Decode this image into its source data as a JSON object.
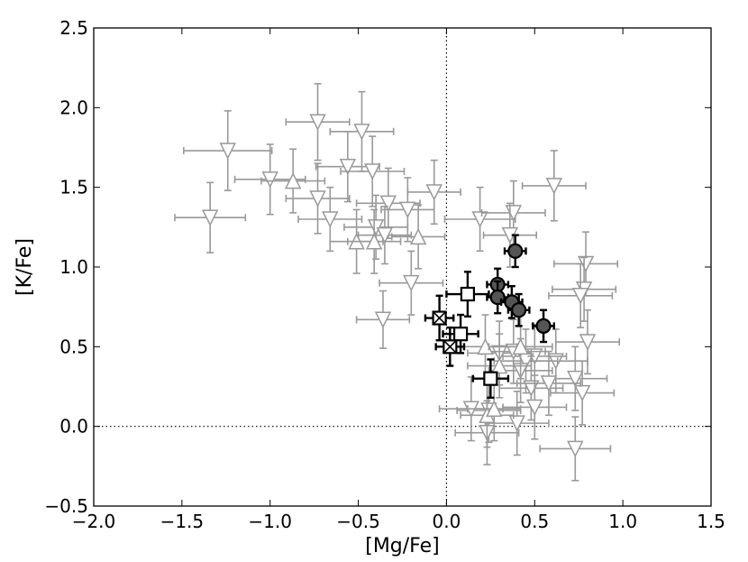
{
  "chart_data": {
    "type": "scatter",
    "title": "",
    "xlabel": "[Mg/Fe]",
    "ylabel": "[K/Fe]",
    "xlim": [
      -2.0,
      1.5
    ],
    "ylim": [
      -0.5,
      2.5
    ],
    "xticks": [
      -2.0,
      -1.5,
      -1.0,
      -0.5,
      0.0,
      0.5,
      1.0,
      1.5
    ],
    "yticks": [
      -0.5,
      0.0,
      0.5,
      1.0,
      1.5,
      2.0,
      2.5
    ],
    "xtick_labels": [
      "−2.0",
      "−1.5",
      "−1.0",
      "−0.5",
      "0.0",
      "0.5",
      "1.0",
      "1.5"
    ],
    "ytick_labels": [
      "−0.5",
      "0.0",
      "0.5",
      "1.0",
      "1.5",
      "2.0",
      "2.5"
    ],
    "reference_lines": {
      "x": 0.0,
      "y": 0.0,
      "style": "dotted"
    },
    "grid": false,
    "colors": {
      "gray_markers": "#999999",
      "black_markers": "#000000",
      "filled_circle": "#555555"
    },
    "series": [
      {
        "marker": "triangle-down",
        "fill": "#ffffff",
        "edge": "#999999",
        "points": [
          {
            "x": -1.34,
            "y": 1.31,
            "xerr": 0.2,
            "yerr": 0.22
          },
          {
            "x": -1.24,
            "y": 1.73,
            "xerr": 0.25,
            "yerr": 0.25
          },
          {
            "x": -1.0,
            "y": 1.55,
            "xerr": 0.2,
            "yerr": 0.22
          },
          {
            "x": -0.73,
            "y": 1.91,
            "xerr": 0.18,
            "yerr": 0.24
          },
          {
            "x": -0.73,
            "y": 1.43,
            "xerr": 0.18,
            "yerr": 0.22
          },
          {
            "x": -0.66,
            "y": 1.3,
            "xerr": 0.18,
            "yerr": 0.2
          },
          {
            "x": -0.56,
            "y": 1.63,
            "xerr": 0.18,
            "yerr": 0.22
          },
          {
            "x": -0.48,
            "y": 1.85,
            "xerr": 0.18,
            "yerr": 0.25
          },
          {
            "x": -0.42,
            "y": 1.6,
            "xerr": 0.18,
            "yerr": 0.22
          },
          {
            "x": -0.4,
            "y": 1.25,
            "xerr": 0.18,
            "yerr": 0.2
          },
          {
            "x": -0.33,
            "y": 1.4,
            "xerr": 0.18,
            "yerr": 0.22
          },
          {
            "x": -0.36,
            "y": 0.67,
            "xerr": 0.15,
            "yerr": 0.18
          },
          {
            "x": -0.35,
            "y": 1.2,
            "xerr": 0.15,
            "yerr": 0.18
          },
          {
            "x": -0.22,
            "y": 1.36,
            "xerr": 0.15,
            "yerr": 0.2
          },
          {
            "x": -0.2,
            "y": 0.9,
            "xerr": 0.18,
            "yerr": 0.2
          },
          {
            "x": -0.07,
            "y": 1.47,
            "xerr": 0.15,
            "yerr": 0.2
          },
          {
            "x": 0.19,
            "y": 1.3,
            "xerr": 0.2,
            "yerr": 0.2
          },
          {
            "x": 0.38,
            "y": 1.34,
            "xerr": 0.18,
            "yerr": 0.2
          },
          {
            "x": 0.36,
            "y": 1.2,
            "xerr": 0.15,
            "yerr": 0.2
          },
          {
            "x": 0.61,
            "y": 1.51,
            "xerr": 0.18,
            "yerr": 0.22
          },
          {
            "x": 0.79,
            "y": 1.02,
            "xerr": 0.18,
            "yerr": 0.2
          },
          {
            "x": 0.78,
            "y": 0.86,
            "xerr": 0.18,
            "yerr": 0.2
          },
          {
            "x": 0.76,
            "y": 0.82,
            "xerr": 0.18,
            "yerr": 0.2
          },
          {
            "x": 0.8,
            "y": 0.53,
            "xerr": 0.18,
            "yerr": 0.2
          },
          {
            "x": 0.62,
            "y": 0.41,
            "xerr": 0.18,
            "yerr": 0.2
          },
          {
            "x": 0.5,
            "y": 0.44,
            "xerr": 0.18,
            "yerr": 0.2
          },
          {
            "x": 0.45,
            "y": 0.41,
            "xerr": 0.18,
            "yerr": 0.2
          },
          {
            "x": 0.48,
            "y": 0.24,
            "xerr": 0.18,
            "yerr": 0.2
          },
          {
            "x": 0.5,
            "y": 0.12,
            "xerr": 0.18,
            "yerr": 0.2
          },
          {
            "x": 0.73,
            "y": 0.3,
            "xerr": 0.18,
            "yerr": 0.2
          },
          {
            "x": 0.77,
            "y": 0.21,
            "xerr": 0.18,
            "yerr": 0.2
          },
          {
            "x": 0.73,
            "y": -0.14,
            "xerr": 0.2,
            "yerr": 0.2
          },
          {
            "x": 0.4,
            "y": 0.02,
            "xerr": 0.18,
            "yerr": 0.2
          },
          {
            "x": 0.24,
            "y": 0.1,
            "xerr": 0.18,
            "yerr": 0.2
          },
          {
            "x": 0.14,
            "y": 0.11,
            "xerr": 0.18,
            "yerr": 0.2
          },
          {
            "x": 0.23,
            "y": -0.04,
            "xerr": 0.18,
            "yerr": 0.2
          },
          {
            "x": 0.3,
            "y": 0.46,
            "xerr": 0.18,
            "yerr": 0.2
          },
          {
            "x": 0.38,
            "y": 0.47,
            "xerr": 0.18,
            "yerr": 0.2
          },
          {
            "x": 0.42,
            "y": 0.35,
            "xerr": 0.18,
            "yerr": 0.2
          },
          {
            "x": 0.58,
            "y": 0.27,
            "xerr": 0.18,
            "yerr": 0.2
          }
        ]
      },
      {
        "marker": "triangle-up",
        "fill": "#ffffff",
        "edge": "#999999",
        "points": [
          {
            "x": -0.87,
            "y": 1.54,
            "xerr": 0.18,
            "yerr": 0.2
          },
          {
            "x": -0.51,
            "y": 1.16,
            "xerr": 0.15,
            "yerr": 0.2
          },
          {
            "x": -0.41,
            "y": 1.16,
            "xerr": 0.15,
            "yerr": 0.2
          },
          {
            "x": -0.16,
            "y": 1.19,
            "xerr": 0.15,
            "yerr": 0.2
          },
          {
            "x": 0.22,
            "y": 0.5,
            "xerr": 0.18,
            "yerr": 0.2
          },
          {
            "x": 0.23,
            "y": 0.07,
            "xerr": 0.15,
            "yerr": 0.2
          },
          {
            "x": 0.27,
            "y": 0.11,
            "xerr": 0.15,
            "yerr": 0.2
          },
          {
            "x": 0.3,
            "y": 0.38,
            "xerr": 0.18,
            "yerr": 0.2
          },
          {
            "x": 0.42,
            "y": 0.5,
            "xerr": 0.18,
            "yerr": 0.2
          }
        ]
      },
      {
        "marker": "square",
        "fill": "#ffffff",
        "edge": "#000000",
        "points": [
          {
            "x": 0.12,
            "y": 0.83,
            "xerr": 0.12,
            "yerr": 0.14
          },
          {
            "x": 0.08,
            "y": 0.58,
            "xerr": 0.1,
            "yerr": 0.12
          },
          {
            "x": 0.25,
            "y": 0.3,
            "xerr": 0.1,
            "yerr": 0.12
          }
        ]
      },
      {
        "marker": "square-x",
        "fill": "#ffffff",
        "edge": "#000000",
        "points": [
          {
            "x": -0.04,
            "y": 0.68,
            "xerr": 0.08,
            "yerr": 0.14
          },
          {
            "x": 0.02,
            "y": 0.5,
            "xerr": 0.08,
            "yerr": 0.12
          }
        ]
      },
      {
        "marker": "circle",
        "fill": "#555555",
        "edge": "#000000",
        "points": [
          {
            "x": 0.39,
            "y": 1.1,
            "xerr": 0.06,
            "yerr": 0.1
          },
          {
            "x": 0.29,
            "y": 0.89,
            "xerr": 0.06,
            "yerr": 0.1
          },
          {
            "x": 0.29,
            "y": 0.81,
            "xerr": 0.06,
            "yerr": 0.1
          },
          {
            "x": 0.37,
            "y": 0.78,
            "xerr": 0.06,
            "yerr": 0.1
          },
          {
            "x": 0.41,
            "y": 0.73,
            "xerr": 0.06,
            "yerr": 0.1
          },
          {
            "x": 0.55,
            "y": 0.63,
            "xerr": 0.06,
            "yerr": 0.1
          }
        ]
      }
    ]
  }
}
